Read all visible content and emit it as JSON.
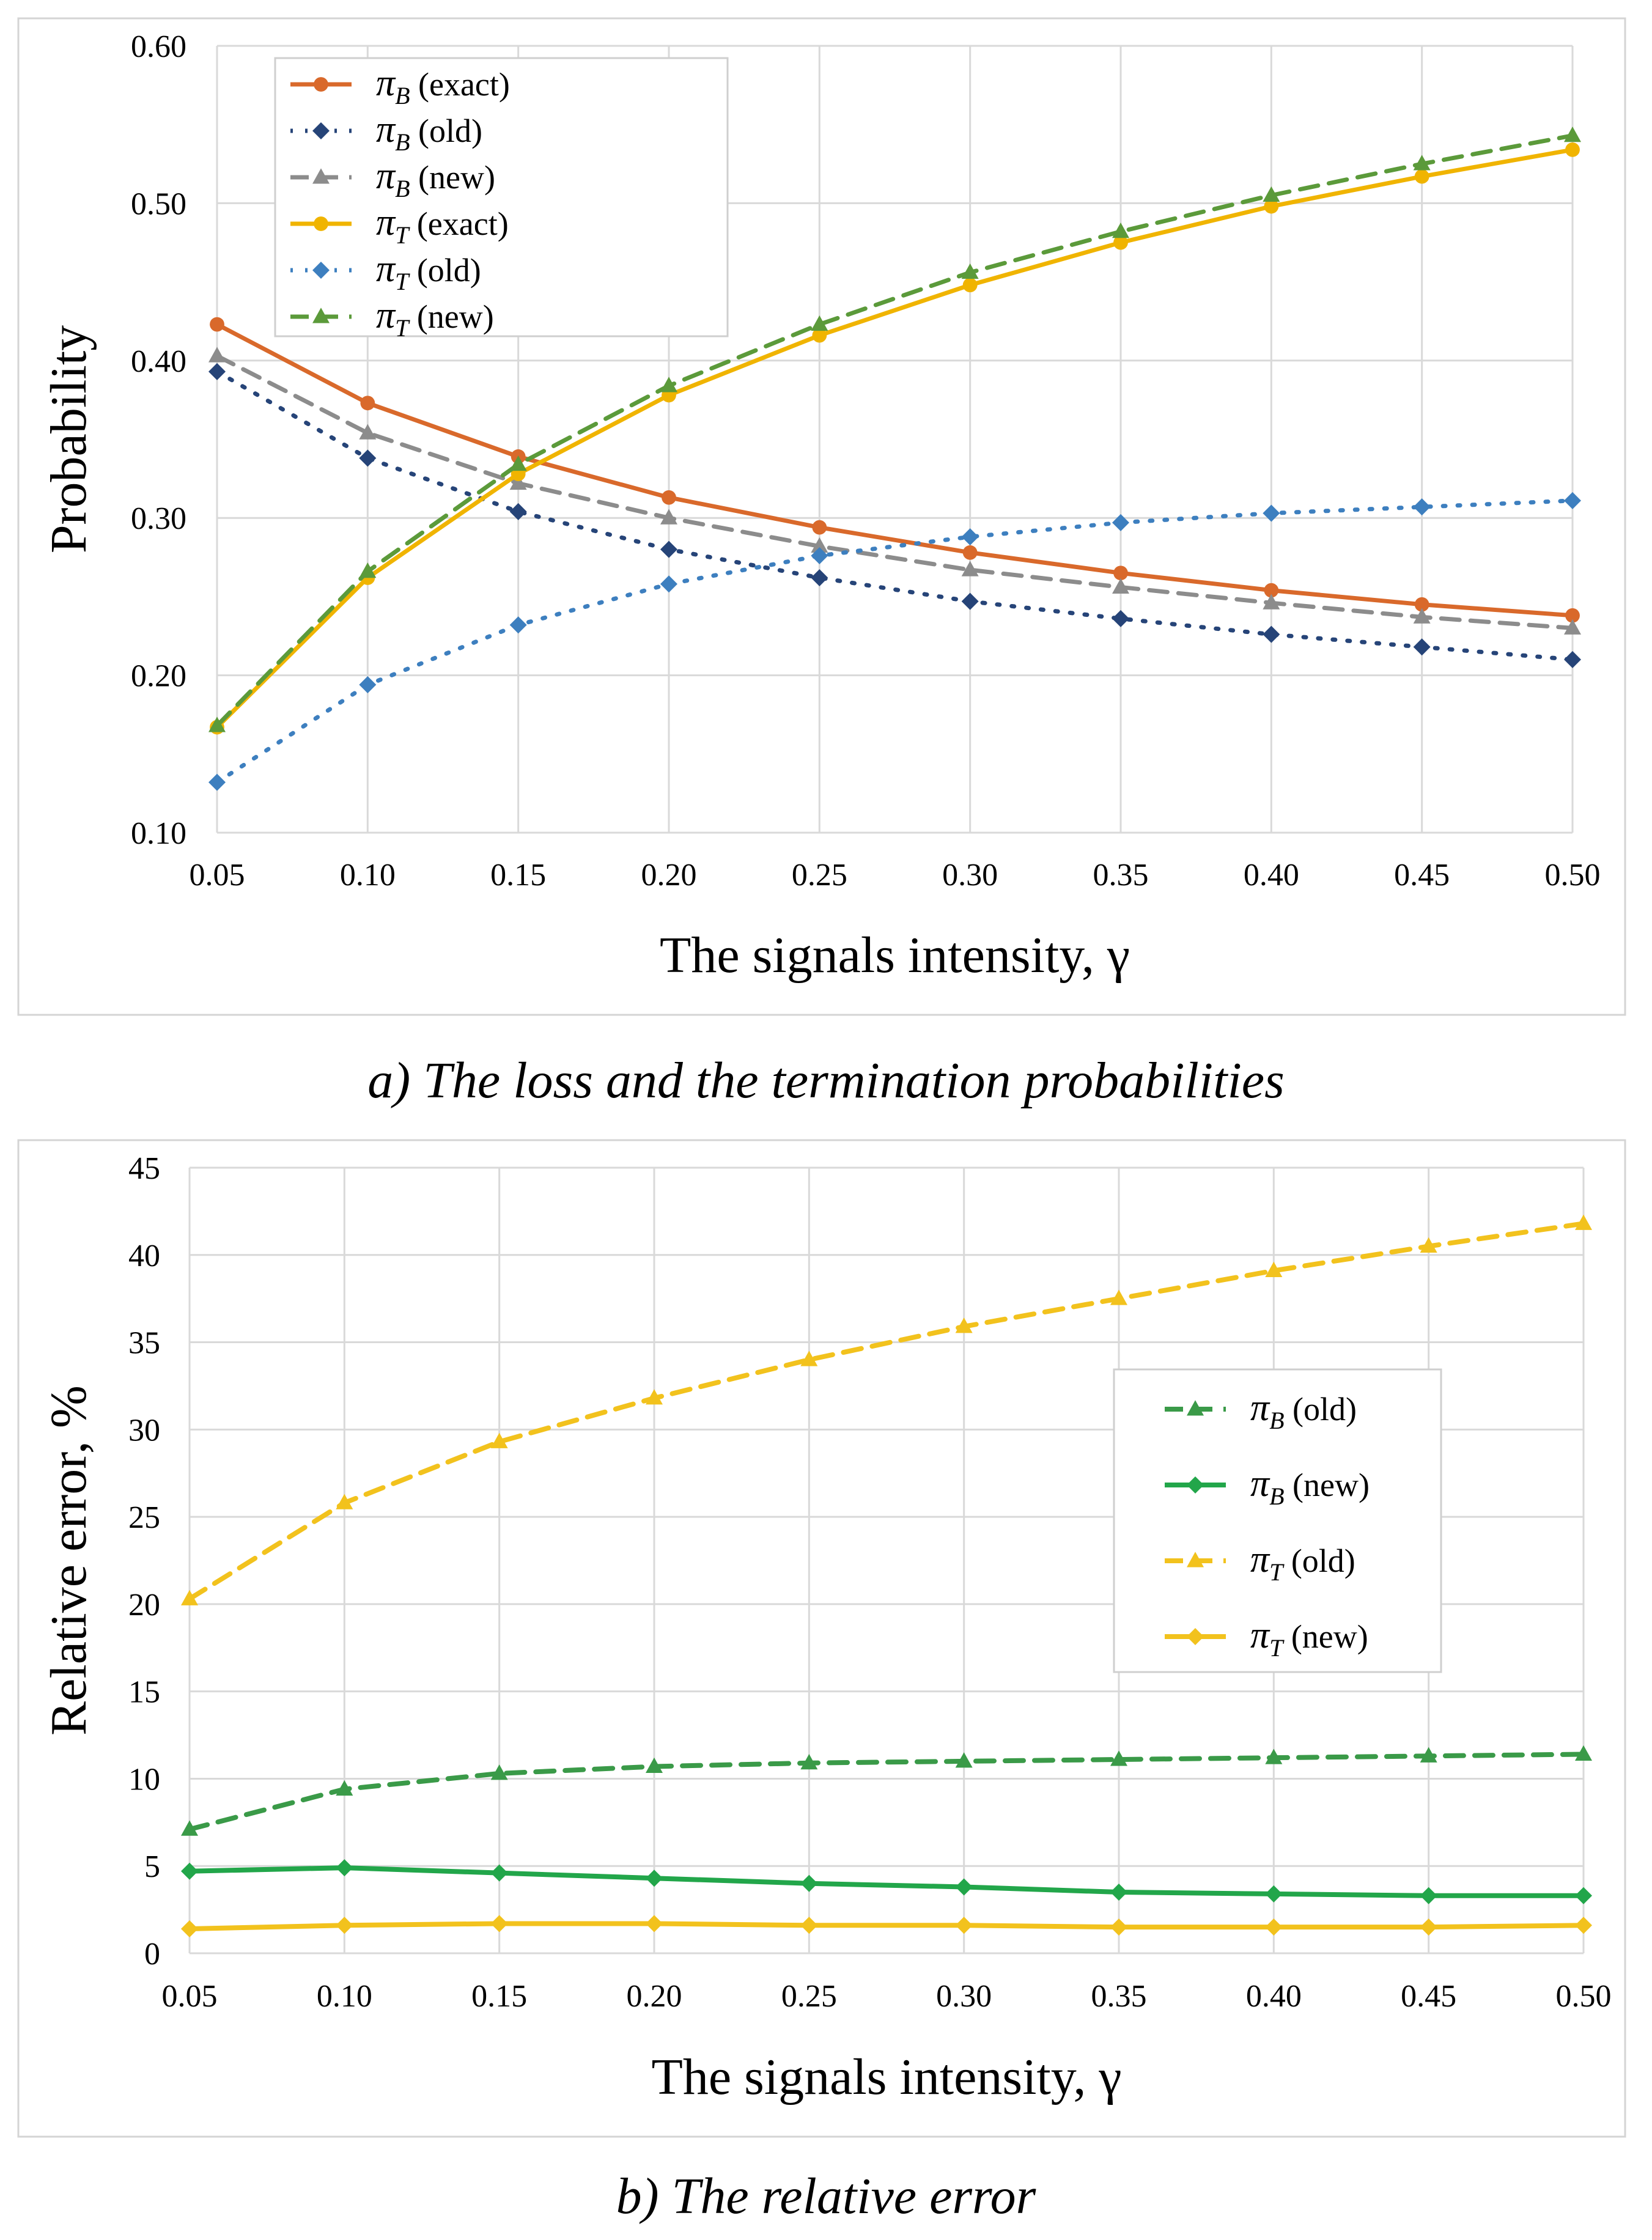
{
  "chart_data": [
    {
      "type": "line",
      "caption": "a) The loss and the termination probabilities",
      "xlabel": "The signals intensity, γ",
      "ylabel": "Probability",
      "x_ticks": [
        "0.05",
        "0.10",
        "0.15",
        "0.20",
        "0.25",
        "0.30",
        "0.35",
        "0.40",
        "0.45",
        "0.50"
      ],
      "y_ticks": [
        "0.10",
        "0.20",
        "0.30",
        "0.40",
        "0.50",
        "0.60"
      ],
      "x": [
        0.05,
        0.1,
        0.15,
        0.2,
        0.25,
        0.3,
        0.35,
        0.4,
        0.45,
        0.5
      ],
      "ylim": [
        0.1,
        0.6
      ],
      "grid": true,
      "legend_position": "top-left",
      "series": [
        {
          "symbol": "π",
          "sub": "B",
          "tag": " (exact)",
          "color": "#d9692b",
          "dash": "solid",
          "marker": "circle",
          "values": [
            0.423,
            0.373,
            0.339,
            0.313,
            0.294,
            0.278,
            0.265,
            0.254,
            0.245,
            0.238
          ]
        },
        {
          "symbol": "π",
          "sub": "B",
          "tag": " (old)",
          "color": "#264478",
          "dash": "dot",
          "marker": "diamond",
          "values": [
            0.393,
            0.338,
            0.304,
            0.28,
            0.262,
            0.247,
            0.236,
            0.226,
            0.218,
            0.21
          ]
        },
        {
          "symbol": "π",
          "sub": "B",
          "tag": " (new)",
          "color": "#8c8c8c",
          "dash": "dash",
          "marker": "triangle",
          "values": [
            0.403,
            0.354,
            0.322,
            0.3,
            0.282,
            0.267,
            0.256,
            0.246,
            0.237,
            0.23
          ]
        },
        {
          "symbol": "π",
          "sub": "T",
          "tag": " (exact)",
          "color": "#f0b400",
          "dash": "solid",
          "marker": "circle",
          "values": [
            0.167,
            0.262,
            0.328,
            0.378,
            0.416,
            0.448,
            0.475,
            0.498,
            0.517,
            0.534
          ]
        },
        {
          "symbol": "π",
          "sub": "T",
          "tag": " (old)",
          "color": "#3d7fbf",
          "dash": "dot",
          "marker": "diamond",
          "values": [
            0.132,
            0.194,
            0.232,
            0.258,
            0.276,
            0.288,
            0.297,
            0.303,
            0.307,
            0.311
          ]
        },
        {
          "symbol": "π",
          "sub": "T",
          "tag": " (new)",
          "color": "#5b9a3a",
          "dash": "dash",
          "marker": "triangle",
          "values": [
            0.168,
            0.266,
            0.334,
            0.384,
            0.423,
            0.456,
            0.482,
            0.505,
            0.525,
            0.543
          ]
        }
      ]
    },
    {
      "type": "line",
      "caption": "b) The relative error",
      "xlabel": "The signals intensity, γ",
      "ylabel": "Relative error, %",
      "x_ticks": [
        "0.05",
        "0.10",
        "0.15",
        "0.20",
        "0.25",
        "0.30",
        "0.35",
        "0.40",
        "0.45",
        "0.50"
      ],
      "y_ticks": [
        "0",
        "5",
        "10",
        "15",
        "20",
        "25",
        "30",
        "35",
        "40",
        "45"
      ],
      "x": [
        0.05,
        0.1,
        0.15,
        0.2,
        0.25,
        0.3,
        0.35,
        0.4,
        0.45,
        0.5
      ],
      "ylim": [
        0,
        45
      ],
      "grid": true,
      "legend_position": "right",
      "series": [
        {
          "symbol": "π",
          "sub": "B",
          "tag": " (old)",
          "color": "#3a9a48",
          "dash": "dash",
          "marker": "triangle",
          "values": [
            7.1,
            9.4,
            10.3,
            10.7,
            10.9,
            11.0,
            11.1,
            11.2,
            11.3,
            11.4
          ]
        },
        {
          "symbol": "π",
          "sub": "B",
          "tag": " (new)",
          "color": "#22a64a",
          "dash": "solid",
          "marker": "diamond",
          "values": [
            4.7,
            4.9,
            4.6,
            4.3,
            4.0,
            3.8,
            3.5,
            3.4,
            3.3,
            3.3
          ]
        },
        {
          "symbol": "π",
          "sub": "T",
          "tag": " (old)",
          "color": "#f2c21d",
          "dash": "dash",
          "marker": "triangle",
          "values": [
            20.3,
            25.8,
            29.3,
            31.8,
            34.0,
            35.9,
            37.5,
            39.1,
            40.5,
            41.8
          ]
        },
        {
          "symbol": "π",
          "sub": "T",
          "tag": " (new)",
          "color": "#f2c21d",
          "dash": "solid",
          "marker": "diamond",
          "values": [
            1.4,
            1.6,
            1.7,
            1.7,
            1.6,
            1.6,
            1.5,
            1.5,
            1.5,
            1.6
          ]
        }
      ]
    }
  ]
}
